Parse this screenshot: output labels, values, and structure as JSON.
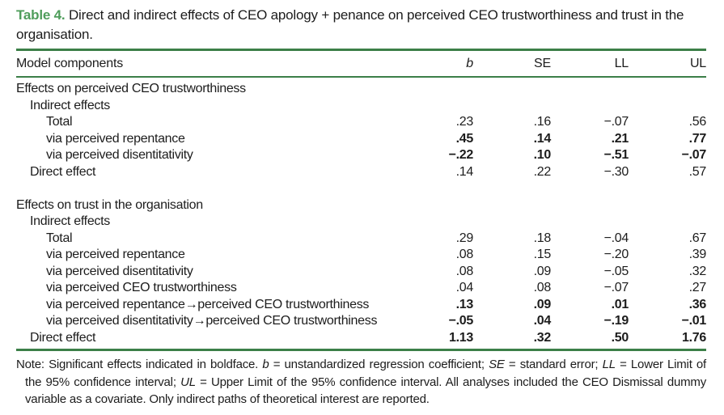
{
  "title": {
    "label": "Table 4.",
    "text": " Direct and indirect effects of CEO apology + penance on perceived CEO trustworthiness and trust in the organisation."
  },
  "table": {
    "header": {
      "component_label": "Model components",
      "cols": [
        "b",
        "SE",
        "LL",
        "UL"
      ]
    },
    "rows": [
      {
        "label": "Effects on perceived CEO trustworthiness",
        "indent": 0,
        "values": [
          "",
          "",
          "",
          ""
        ],
        "bold": false
      },
      {
        "label": "Indirect effects",
        "indent": 1,
        "values": [
          "",
          "",
          "",
          ""
        ],
        "bold": false
      },
      {
        "label": "Total",
        "indent": 2,
        "values": [
          ".23",
          ".16",
          "−.07",
          ".56"
        ],
        "bold": false
      },
      {
        "label": "via perceived repentance",
        "indent": 2,
        "values": [
          ".45",
          ".14",
          ".21",
          ".77"
        ],
        "bold": true
      },
      {
        "label": "via perceived disentitativity",
        "indent": 2,
        "values": [
          "−.22",
          ".10",
          "−.51",
          "−.07"
        ],
        "bold": true
      },
      {
        "label": "Direct effect",
        "indent": 1,
        "values": [
          ".14",
          ".22",
          "−.30",
          ".57"
        ],
        "bold": false
      },
      {
        "spacer": true
      },
      {
        "label": "Effects on trust in the organisation",
        "indent": 0,
        "values": [
          "",
          "",
          "",
          ""
        ],
        "bold": false
      },
      {
        "label": "Indirect effects",
        "indent": 1,
        "values": [
          "",
          "",
          "",
          ""
        ],
        "bold": false
      },
      {
        "label": "Total",
        "indent": 2,
        "values": [
          ".29",
          ".18",
          "−.04",
          ".67"
        ],
        "bold": false
      },
      {
        "label": "via perceived repentance",
        "indent": 2,
        "values": [
          ".08",
          ".15",
          "−.20",
          ".39"
        ],
        "bold": false
      },
      {
        "label": "via perceived disentitativity",
        "indent": 2,
        "values": [
          ".08",
          ".09",
          "−.05",
          ".32"
        ],
        "bold": false
      },
      {
        "label": "via perceived CEO trustworthiness",
        "indent": 2,
        "values": [
          ".04",
          ".08",
          "−.07",
          ".27"
        ],
        "bold": false
      },
      {
        "label": "via perceived repentance→perceived CEO trustworthiness",
        "indent": 2,
        "values": [
          ".13",
          ".09",
          ".01",
          ".36"
        ],
        "bold": true
      },
      {
        "label": "via perceived disentitativity→perceived CEO trustworthiness",
        "indent": 2,
        "values": [
          "−.05",
          ".04",
          "−.19",
          "−.01"
        ],
        "bold": true
      },
      {
        "label": "Direct effect",
        "indent": 1,
        "values": [
          "1.13",
          ".32",
          ".50",
          "1.76"
        ],
        "bold": true
      }
    ]
  },
  "note": {
    "segments": [
      {
        "text": "Note: Significant effects indicated in boldface. ",
        "italic": false
      },
      {
        "text": "b",
        "italic": true
      },
      {
        "text": " = unstandardized regression coefficient; ",
        "italic": false
      },
      {
        "text": "SE",
        "italic": true
      },
      {
        "text": " = standard error; ",
        "italic": false
      },
      {
        "text": "LL",
        "italic": true
      },
      {
        "text": " = Lower Limit of the 95% confidence interval; ",
        "italic": false
      },
      {
        "text": "UL",
        "italic": true
      },
      {
        "text": " = Upper Limit of the 95% confidence interval. All analyses included the CEO Dismissal dummy variable as a covariate. Only indirect paths of theoretical interest are reported.",
        "italic": false
      }
    ]
  },
  "colors": {
    "accent_green_text": "#4f9d5b",
    "accent_green_rule": "#3c7f48",
    "body_text": "#1c1c1c"
  }
}
